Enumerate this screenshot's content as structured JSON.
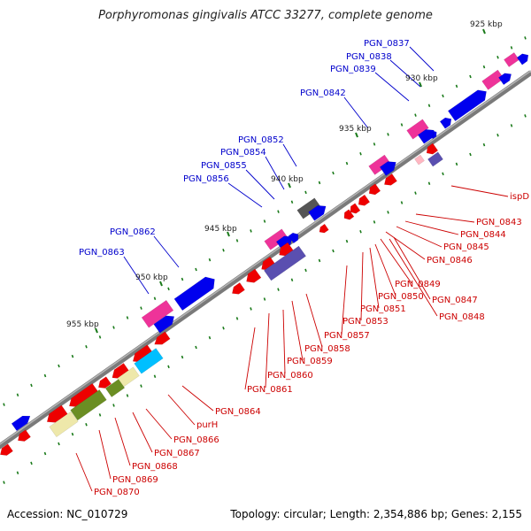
{
  "title": "Porphyromonas gingivalis ATCC 33277, complete genome",
  "footer": {
    "accession": "Accession: NC_010729",
    "topology": "Topology: circular; Length: 2,354,886 bp; Genes: 2,155"
  },
  "colors": {
    "backbone": "#808080",
    "forward_gene": "#0000ee",
    "reverse_gene": "#ee0000",
    "forward_label": "#0000cc",
    "reverse_label": "#cc0000",
    "tick": "#1a7a1a",
    "magenta": "#ee3399",
    "dark_gray": "#555555",
    "slate": "#5a4fb0",
    "olive": "#6b8e23",
    "khaki": "#eee8aa",
    "cyan": "#00bfff",
    "light_pink": "#ffb6c1"
  },
  "kbp_ticks": [
    "925 kbp",
    "930 kbp",
    "935 kbp",
    "940 kbp",
    "945 kbp",
    "950 kbp",
    "955 kbp"
  ],
  "forward_labels": [
    "PGN_0837",
    "PGN_0838",
    "PGN_0839",
    "PGN_0842",
    "PGN_0852",
    "PGN_0854",
    "PGN_0855",
    "PGN_0856",
    "PGN_0862",
    "PGN_0863"
  ],
  "reverse_labels": [
    "ispD",
    "PGN_0843",
    "PGN_0844",
    "PGN_0845",
    "PGN_0846",
    "PGN_0849",
    "PGN_0847",
    "PGN_0850",
    "PGN_0851",
    "PGN_0848",
    "PGN_0853",
    "PGN_0857",
    "PGN_0858",
    "PGN_0859",
    "PGN_0860",
    "PGN_0861",
    "PGN_0864",
    "purH",
    "PGN_0866",
    "PGN_0867",
    "PGN_0868",
    "PGN_0869",
    "PGN_0870"
  ]
}
